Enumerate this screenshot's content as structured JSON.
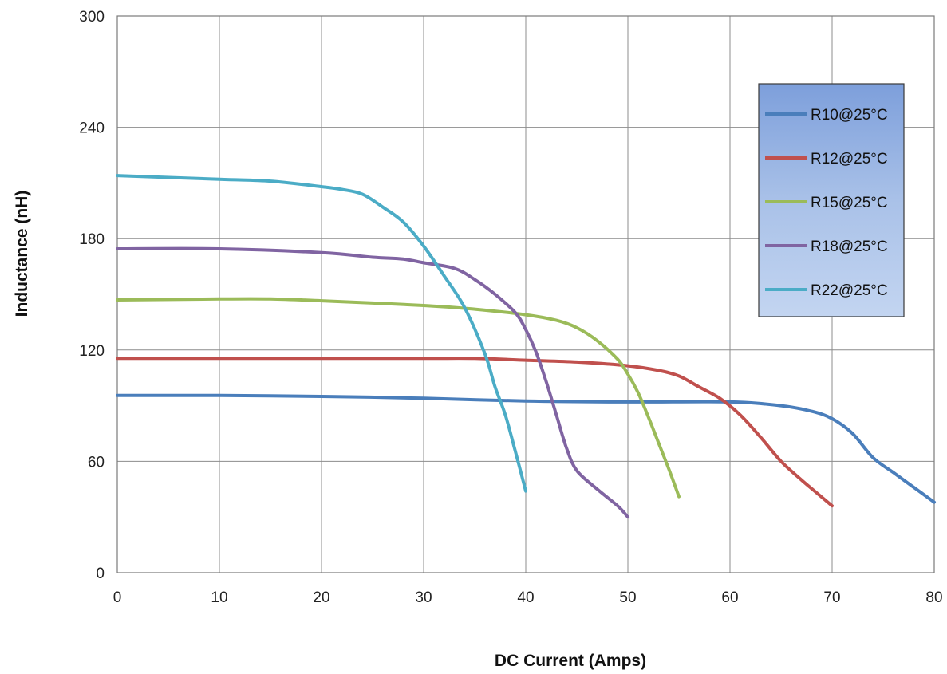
{
  "chart_data": {
    "type": "line",
    "title": "",
    "xlabel": "DC Current (Amps)",
    "ylabel": "Inductance (nH)",
    "xlim": [
      0,
      80
    ],
    "ylim": [
      0,
      300
    ],
    "xticks": [
      0,
      10,
      20,
      30,
      40,
      50,
      60,
      70,
      80
    ],
    "yticks": [
      0,
      60,
      120,
      180,
      240,
      300
    ],
    "grid": true,
    "legend_position": "top-right",
    "series": [
      {
        "name": "R10@25°C",
        "color": "#4a7ebb",
        "points": [
          [
            0,
            95.5
          ],
          [
            10,
            95.5
          ],
          [
            20,
            95
          ],
          [
            30,
            94
          ],
          [
            40,
            92.5
          ],
          [
            50,
            92
          ],
          [
            60,
            92
          ],
          [
            65,
            90
          ],
          [
            68,
            87
          ],
          [
            70,
            83
          ],
          [
            72,
            75
          ],
          [
            74,
            62
          ],
          [
            76,
            54
          ],
          [
            78,
            46
          ],
          [
            80,
            38
          ]
        ]
      },
      {
        "name": "R12@25°C",
        "color": "#c0504d",
        "points": [
          [
            0,
            115.5
          ],
          [
            10,
            115.5
          ],
          [
            20,
            115.5
          ],
          [
            30,
            115.5
          ],
          [
            35,
            115.5
          ],
          [
            40,
            114.5
          ],
          [
            45,
            113.5
          ],
          [
            50,
            111.5
          ],
          [
            53,
            109
          ],
          [
            55,
            106
          ],
          [
            57,
            100
          ],
          [
            59,
            94
          ],
          [
            61,
            85
          ],
          [
            63,
            73
          ],
          [
            65,
            60
          ],
          [
            67,
            50
          ],
          [
            68.5,
            43
          ],
          [
            70,
            36
          ]
        ]
      },
      {
        "name": "R15@25°C",
        "color": "#9bbb59",
        "points": [
          [
            0,
            147
          ],
          [
            10,
            147.5
          ],
          [
            15,
            147.5
          ],
          [
            20,
            146.5
          ],
          [
            30,
            144
          ],
          [
            35,
            142
          ],
          [
            40,
            139
          ],
          [
            43,
            136
          ],
          [
            45,
            132
          ],
          [
            47,
            125
          ],
          [
            49,
            115
          ],
          [
            50,
            107
          ],
          [
            51,
            97
          ],
          [
            52,
            84
          ],
          [
            53,
            70
          ],
          [
            54,
            56
          ],
          [
            55,
            41
          ]
        ]
      },
      {
        "name": "R18@25°C",
        "color": "#8064a2",
        "points": [
          [
            0,
            174.5
          ],
          [
            10,
            174.5
          ],
          [
            20,
            172.5
          ],
          [
            25,
            170
          ],
          [
            28,
            169
          ],
          [
            30,
            167
          ],
          [
            33,
            164
          ],
          [
            35,
            158
          ],
          [
            37,
            150
          ],
          [
            39,
            140
          ],
          [
            40,
            131
          ],
          [
            41,
            119
          ],
          [
            42,
            103
          ],
          [
            43,
            85
          ],
          [
            44,
            67
          ],
          [
            45,
            55
          ],
          [
            47,
            45
          ],
          [
            49,
            36
          ],
          [
            50,
            30
          ]
        ]
      },
      {
        "name": "R22@25°C",
        "color": "#4bacc6",
        "points": [
          [
            0,
            214
          ],
          [
            10,
            212
          ],
          [
            15,
            211
          ],
          [
            20,
            208
          ],
          [
            22,
            206.5
          ],
          [
            24,
            204
          ],
          [
            26,
            197
          ],
          [
            28,
            189
          ],
          [
            30,
            176
          ],
          [
            32,
            160
          ],
          [
            34,
            143
          ],
          [
            36,
            118
          ],
          [
            37,
            100
          ],
          [
            38,
            85
          ],
          [
            39,
            65
          ],
          [
            40,
            44
          ]
        ]
      }
    ]
  }
}
